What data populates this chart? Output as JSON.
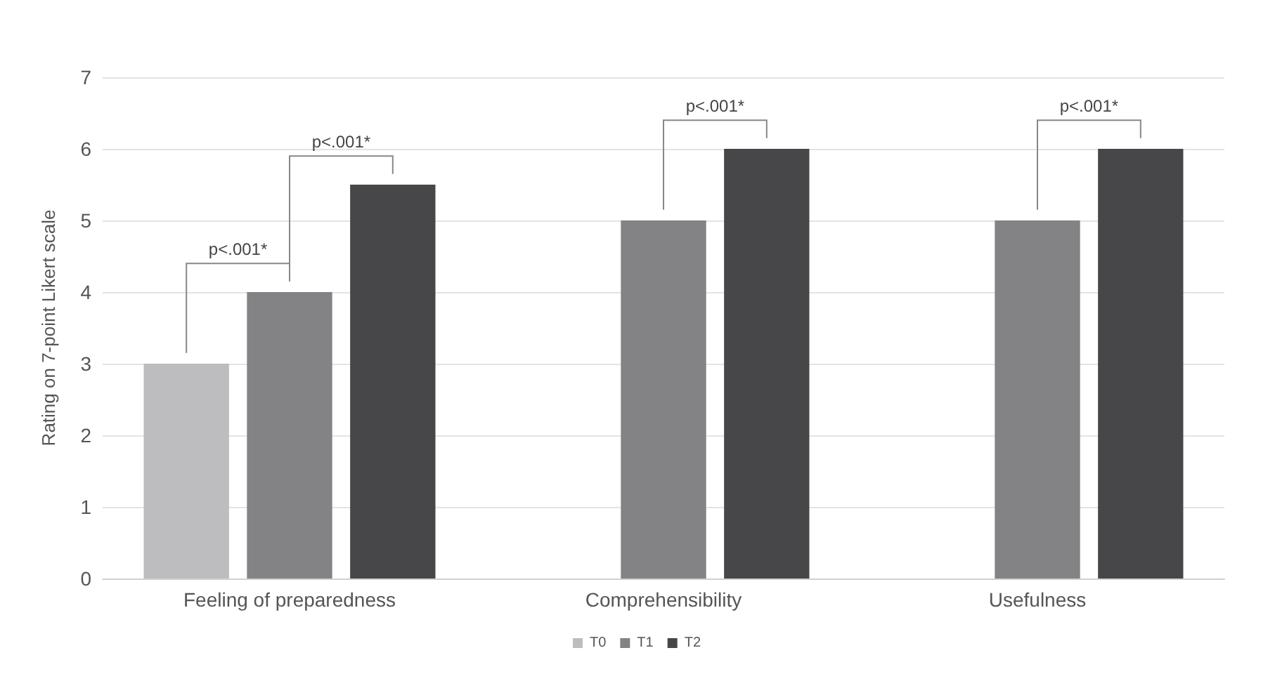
{
  "chart_data": {
    "type": "bar",
    "ylabel": "Rating on 7-point Likert scale",
    "categories": [
      "Feeling of preparedness",
      "Comprehensibility",
      "Usefulness"
    ],
    "series": [
      {
        "name": "T0",
        "color": "#bdbdc0",
        "values": [
          3,
          null,
          null
        ]
      },
      {
        "name": "T1",
        "color": "#838386",
        "values": [
          4,
          5,
          5
        ]
      },
      {
        "name": "T2",
        "color": "#47474a",
        "values": [
          5.5,
          6,
          6
        ]
      }
    ],
    "ylim": [
      0,
      7
    ],
    "yticks": [
      0,
      1,
      2,
      3,
      4,
      5,
      6,
      7
    ],
    "grid": "y",
    "legend": "bottom",
    "annotations": [
      "p<.001*",
      "p<.001*",
      "p<.001*",
      "p<.001*"
    ]
  }
}
